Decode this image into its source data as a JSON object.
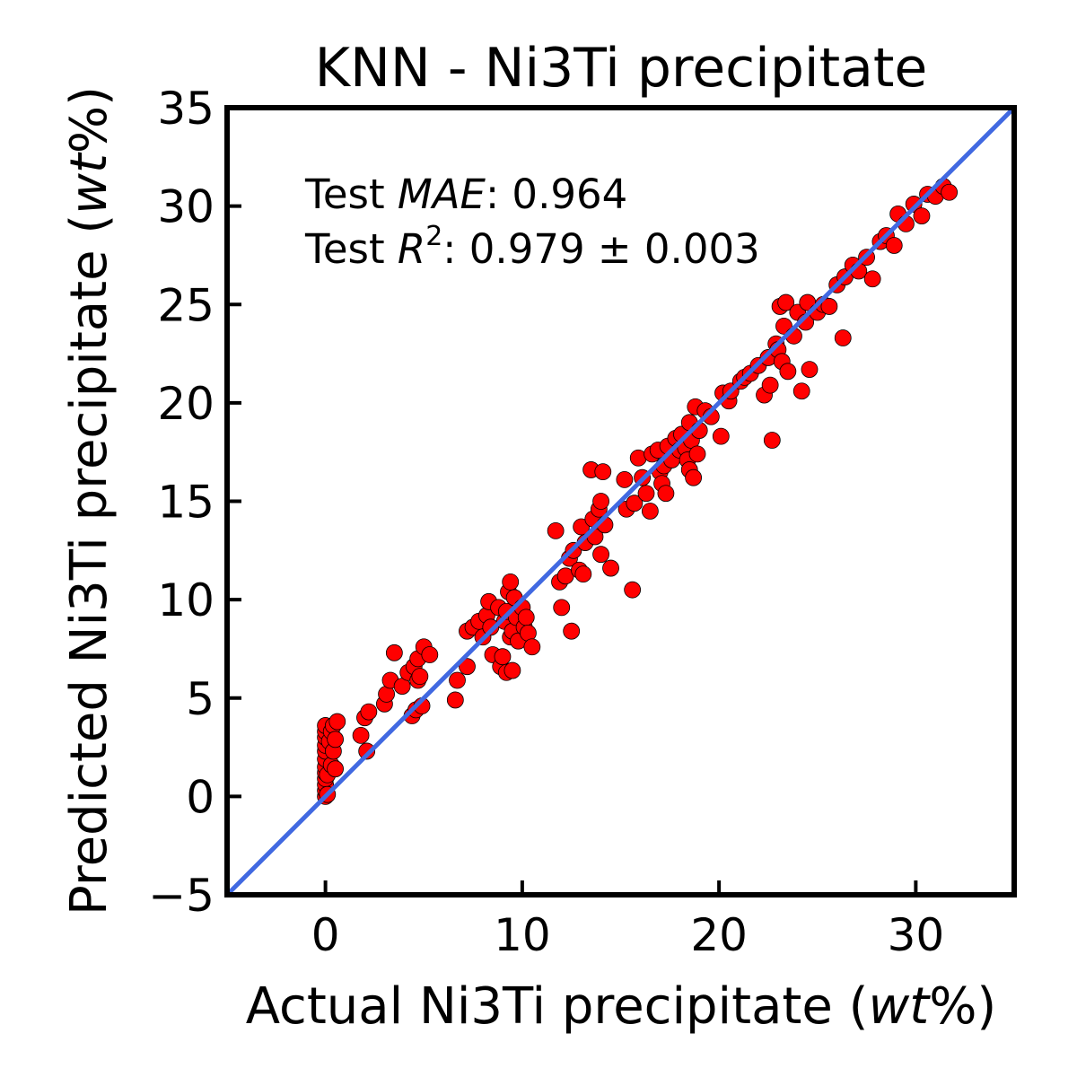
{
  "chart_data": {
    "type": "scatter",
    "title": "KNN - Ni3Ti precipitate",
    "xlabel": {
      "prefix": "Actual Ni3Ti precipitate (",
      "unit": "wt",
      "suffix": "%)"
    },
    "ylabel": {
      "prefix": "Predicted Ni3Ti precipitate (",
      "unit": "wt",
      "suffix": "%)"
    },
    "xlim": [
      -5,
      35
    ],
    "ylim": [
      -5,
      35
    ],
    "x_ticks": [
      0,
      10,
      20,
      30
    ],
    "y_ticks": [
      -5,
      0,
      5,
      10,
      15,
      20,
      25,
      30,
      35
    ],
    "y_tick_labels": [
      "−5",
      "0",
      "5",
      "10",
      "15",
      "20",
      "25",
      "30",
      "35"
    ],
    "grid": false,
    "marker_color": "#ff0000",
    "marker_edge_color": "#000000",
    "identity_line_color": "#4169e1",
    "identity_line": {
      "from": [
        -5,
        -5
      ],
      "to": [
        35,
        35
      ]
    },
    "annotations": {
      "mae": {
        "prefix": "Test ",
        "metric": "MAE",
        "value": ": 0.964"
      },
      "r2": {
        "prefix": "Test ",
        "metric": "R",
        "sup": "2",
        "value": ": 0.979 ± 0.003"
      }
    },
    "points": [
      [
        0,
        0
      ],
      [
        0,
        0.3
      ],
      [
        0,
        0.6
      ],
      [
        0,
        0.9
      ],
      [
        0,
        1.2
      ],
      [
        0,
        1.5
      ],
      [
        0,
        1.9
      ],
      [
        0,
        2.3
      ],
      [
        0,
        2.6
      ],
      [
        0,
        3.0
      ],
      [
        0,
        3.3
      ],
      [
        0,
        3.6
      ],
      [
        0.1,
        0.1
      ],
      [
        0.1,
        1.1
      ],
      [
        0.2,
        2.8
      ],
      [
        0.3,
        1.6
      ],
      [
        0.3,
        3.3
      ],
      [
        0.4,
        2.3
      ],
      [
        0.4,
        3.6
      ],
      [
        0.5,
        1.4
      ],
      [
        0.5,
        2.9
      ],
      [
        0.6,
        3.8
      ],
      [
        1.8,
        3.1
      ],
      [
        2.0,
        4.0
      ],
      [
        2.1,
        2.3
      ],
      [
        2.2,
        4.3
      ],
      [
        3.0,
        4.7
      ],
      [
        3.1,
        5.2
      ],
      [
        3.3,
        5.9
      ],
      [
        3.5,
        7.3
      ],
      [
        3.9,
        5.6
      ],
      [
        4.2,
        6.3
      ],
      [
        4.4,
        4.1
      ],
      [
        4.5,
        6.6
      ],
      [
        4.6,
        4.4
      ],
      [
        4.7,
        5.9
      ],
      [
        4.7,
        7.0
      ],
      [
        4.8,
        6.1
      ],
      [
        4.9,
        4.6
      ],
      [
        5.0,
        7.6
      ],
      [
        5.3,
        7.2
      ],
      [
        6.6,
        4.9
      ],
      [
        6.7,
        5.9
      ],
      [
        7.2,
        6.6
      ],
      [
        7.2,
        8.4
      ],
      [
        7.5,
        8.6
      ],
      [
        7.8,
        8.9
      ],
      [
        8.0,
        8.1
      ],
      [
        8.2,
        9.2
      ],
      [
        8.3,
        9.9
      ],
      [
        8.4,
        8.6
      ],
      [
        8.5,
        7.2
      ],
      [
        8.8,
        9.6
      ],
      [
        8.9,
        6.6
      ],
      [
        9.0,
        7.1
      ],
      [
        9.1,
        8.9
      ],
      [
        9.2,
        9.4
      ],
      [
        9.2,
        6.3
      ],
      [
        9.3,
        10.4
      ],
      [
        9.4,
        8.1
      ],
      [
        9.4,
        10.9
      ],
      [
        9.5,
        6.4
      ],
      [
        9.5,
        8.4
      ],
      [
        9.6,
        10.1
      ],
      [
        9.7,
        9.1
      ],
      [
        9.8,
        7.9
      ],
      [
        10.0,
        9.6
      ],
      [
        10.1,
        8.6
      ],
      [
        10.2,
        9.1
      ],
      [
        10.3,
        8.3
      ],
      [
        10.5,
        7.6
      ],
      [
        11.7,
        13.5
      ],
      [
        11.9,
        10.9
      ],
      [
        12.0,
        9.6
      ],
      [
        12.2,
        11.2
      ],
      [
        12.4,
        12.1
      ],
      [
        12.5,
        8.4
      ],
      [
        12.6,
        12.5
      ],
      [
        12.9,
        11.5
      ],
      [
        13.0,
        13.7
      ],
      [
        13.1,
        11.3
      ],
      [
        13.2,
        12.9
      ],
      [
        13.5,
        16.6
      ],
      [
        13.6,
        14.1
      ],
      [
        13.7,
        13.2
      ],
      [
        13.9,
        14.6
      ],
      [
        14.0,
        15.0
      ],
      [
        14.0,
        12.3
      ],
      [
        14.1,
        16.5
      ],
      [
        14.2,
        13.8
      ],
      [
        14.5,
        11.6
      ],
      [
        15.2,
        16.1
      ],
      [
        15.3,
        14.6
      ],
      [
        15.6,
        10.5
      ],
      [
        15.7,
        14.9
      ],
      [
        15.9,
        17.2
      ],
      [
        16.1,
        16.2
      ],
      [
        16.3,
        15.4
      ],
      [
        16.5,
        14.5
      ],
      [
        16.6,
        17.4
      ],
      [
        16.9,
        17.6
      ],
      [
        17.0,
        16.5
      ],
      [
        17.1,
        15.9
      ],
      [
        17.2,
        16.8
      ],
      [
        17.3,
        15.4
      ],
      [
        17.4,
        17.8
      ],
      [
        17.6,
        17.1
      ],
      [
        17.8,
        18.2
      ],
      [
        18.0,
        17.6
      ],
      [
        18.1,
        18.4
      ],
      [
        18.3,
        17.7
      ],
      [
        18.4,
        17.1
      ],
      [
        18.5,
        16.6
      ],
      [
        18.5,
        19.0
      ],
      [
        18.6,
        18.1
      ],
      [
        18.7,
        16.2
      ],
      [
        18.8,
        19.8
      ],
      [
        18.9,
        17.4
      ],
      [
        19.0,
        18.6
      ],
      [
        19.3,
        19.6
      ],
      [
        19.6,
        19.3
      ],
      [
        20.1,
        18.3
      ],
      [
        20.2,
        20.5
      ],
      [
        20.5,
        20.1
      ],
      [
        20.6,
        20.6
      ],
      [
        21.1,
        21.1
      ],
      [
        21.3,
        21.3
      ],
      [
        21.6,
        21.5
      ],
      [
        22.0,
        21.9
      ],
      [
        22.3,
        20.4
      ],
      [
        22.5,
        22.3
      ],
      [
        22.6,
        20.9
      ],
      [
        22.7,
        18.1
      ],
      [
        22.9,
        23.0
      ],
      [
        23.0,
        22.7
      ],
      [
        23.1,
        24.9
      ],
      [
        23.2,
        22.1
      ],
      [
        23.3,
        23.9
      ],
      [
        23.4,
        25.1
      ],
      [
        23.5,
        21.6
      ],
      [
        23.8,
        23.4
      ],
      [
        24.0,
        24.6
      ],
      [
        24.2,
        20.6
      ],
      [
        24.4,
        24.1
      ],
      [
        24.5,
        25.1
      ],
      [
        24.6,
        21.7
      ],
      [
        25.0,
        24.6
      ],
      [
        25.3,
        25.0
      ],
      [
        25.6,
        24.9
      ],
      [
        26.0,
        26.0
      ],
      [
        26.3,
        23.3
      ],
      [
        26.4,
        26.4
      ],
      [
        26.8,
        27.0
      ],
      [
        27.1,
        26.7
      ],
      [
        27.5,
        27.4
      ],
      [
        27.8,
        26.3
      ],
      [
        28.2,
        28.2
      ],
      [
        28.5,
        28.5
      ],
      [
        28.9,
        28.0
      ],
      [
        29.1,
        29.6
      ],
      [
        29.5,
        29.1
      ],
      [
        29.9,
        30.1
      ],
      [
        30.3,
        29.5
      ],
      [
        30.6,
        30.6
      ],
      [
        31.0,
        30.5
      ],
      [
        31.4,
        31.0
      ],
      [
        31.7,
        30.7
      ]
    ]
  }
}
